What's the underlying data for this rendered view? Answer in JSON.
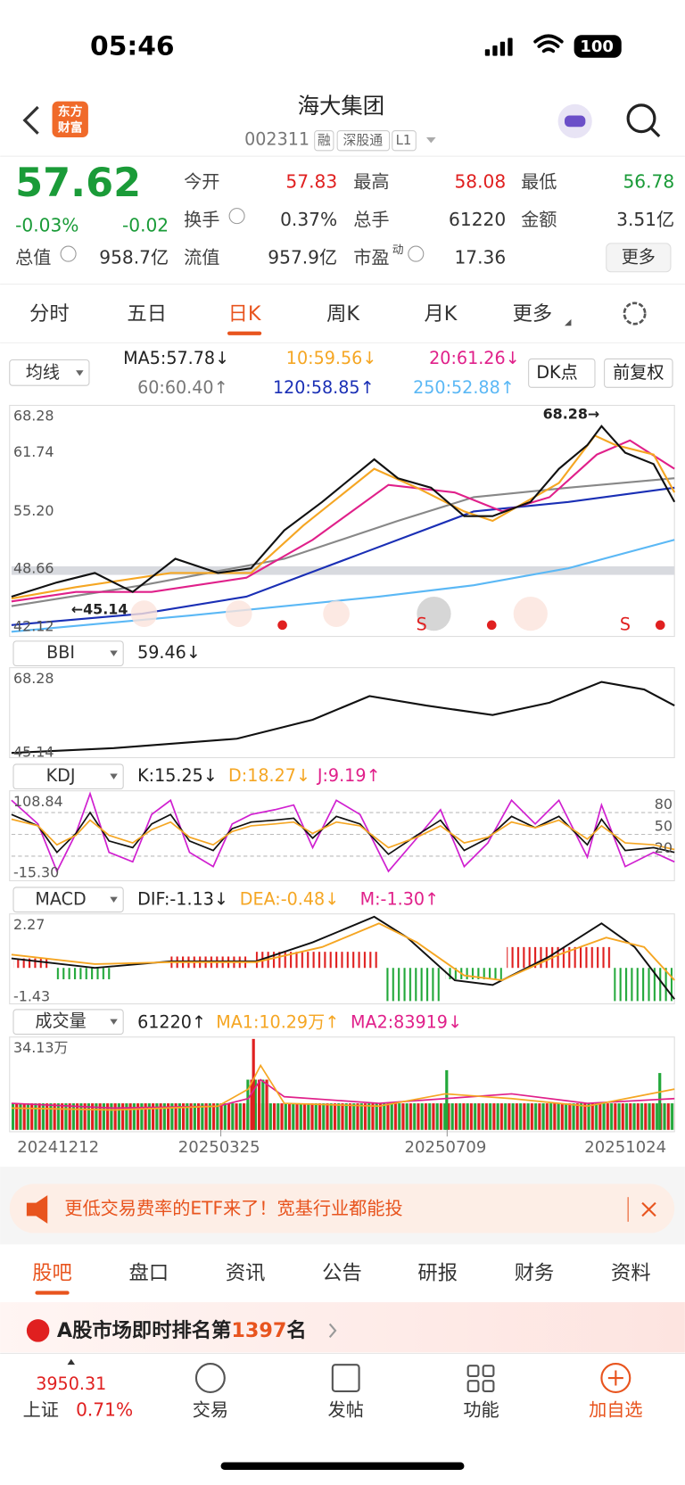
{
  "status": {
    "time": "05:46",
    "battery": "100"
  },
  "header": {
    "logo": [
      "东方",
      "财富"
    ],
    "title": "海大集团",
    "code": "002311",
    "tags": [
      "融",
      "深股通",
      "L1"
    ]
  },
  "quote": {
    "price": "57.62",
    "change_pct": "-0.03%",
    "change": "-0.02",
    "total_value": {
      "label": "总值",
      "value": "958.7亿"
    },
    "fields": [
      {
        "label": "今开",
        "value": "57.83"
      },
      {
        "label": "最高",
        "value": "58.08"
      },
      {
        "label": "最低",
        "value": "56.78"
      },
      {
        "label": "换手",
        "value": "0.37%"
      },
      {
        "label": "总手",
        "value": "61220"
      },
      {
        "label": "金额",
        "value": "3.51亿"
      },
      {
        "label": "流值",
        "value": "957.9亿"
      },
      {
        "label": "市盈",
        "sup": "动",
        "value": "17.36"
      }
    ],
    "more": "更多"
  },
  "tabs": [
    "分时",
    "五日",
    "日K",
    "周K",
    "月K",
    "更多"
  ],
  "ma": {
    "selector": "均线",
    "items": [
      "MA5:57.78↓",
      "10:59.56↓",
      "20:61.26↓",
      "60:60.40↑",
      "120:58.85↑",
      "250:52.88↑"
    ],
    "buttons": [
      "DK点",
      "前复权"
    ]
  },
  "main_chart": {
    "axis": [
      "68.28",
      "61.74",
      "55.20",
      "48.66",
      "42.12"
    ],
    "high_note": "68.28→",
    "low_note": "←45.14",
    "signals": [
      "S",
      "S"
    ]
  },
  "bbi": {
    "selector": "BBI",
    "value": "59.46↓",
    "axis": [
      "68.28",
      "45.14"
    ]
  },
  "kdj": {
    "selector": "KDJ",
    "items": [
      "K:15.25↓",
      "D:18.27↓",
      "J:9.19↑"
    ],
    "axis": [
      "108.84",
      "-15.30"
    ],
    "right_axis": [
      "80",
      "50",
      "20"
    ]
  },
  "macd": {
    "selector": "MACD",
    "items": [
      "DIF:-1.13↓",
      "DEA:-0.48↓",
      "M:-1.30↑"
    ],
    "axis": [
      "2.27",
      "-1.43"
    ]
  },
  "volume": {
    "selector": "成交量",
    "items": [
      "61220↑",
      "MA1:10.29万↑",
      "MA2:83919↓"
    ],
    "axis": [
      "34.13万"
    ]
  },
  "dates": [
    "20241212",
    "20250325",
    "20250709",
    "20251024"
  ],
  "banner": "更低交易费率的ETF来了！宽基行业都能投",
  "bottom_tabs": [
    "股吧",
    "盘口",
    "资讯",
    "公告",
    "研报",
    "财务",
    "资料"
  ],
  "rank": {
    "prefix": "A股市场即时排名第",
    "number": "1397",
    "suffix": "名"
  },
  "nav": {
    "index_value": "3950.31",
    "index_name": "上证",
    "index_pct": "0.71%",
    "items": [
      "交易",
      "发帖",
      "功能",
      "加自选"
    ]
  }
}
